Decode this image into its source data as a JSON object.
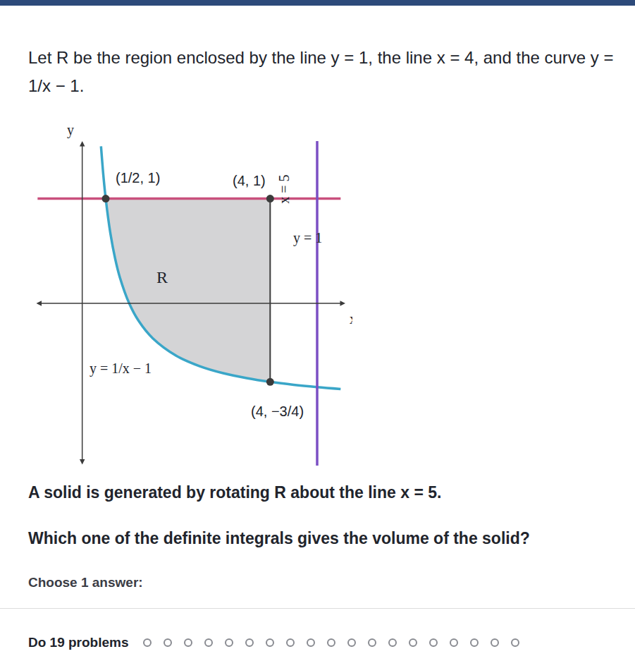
{
  "document": {
    "intro": "Let R be the region enclosed by the line y = 1, the line x = 4, and the curve y = 1/x − 1.",
    "statement": "A solid is generated by rotating R about the line x = 5.",
    "question": "Which one of the definite integrals gives the volume of the solid?",
    "instruction": "Choose 1 answer:",
    "progress": {
      "label": "Do 19 problems",
      "count": 19
    }
  },
  "chart_data": {
    "type": "line",
    "x_label": "x",
    "y_label": "y",
    "tick_labels": false,
    "grid": false,
    "xlim": [
      -1,
      5.6
    ],
    "ylim": [
      -1.55,
      1.55
    ],
    "region_label": "R",
    "series": [
      {
        "name": "R",
        "type": "area",
        "color": "#d4d4d6",
        "x": [
          0.5,
          0.6,
          0.7,
          0.8,
          1,
          1.2,
          1.5,
          2,
          2.5,
          3,
          3.5,
          4,
          4,
          0.5
        ],
        "values": [
          1,
          0.667,
          0.429,
          0.25,
          0,
          -0.167,
          -0.333,
          -0.5,
          -0.6,
          -0.667,
          -0.714,
          -0.75,
          1,
          1
        ]
      },
      {
        "name": "y = 1/x − 1",
        "color": "#3aa6c8",
        "x": [
          0.4,
          0.45,
          0.5,
          0.6,
          0.7,
          0.8,
          1,
          1.2,
          1.5,
          2,
          2.5,
          3,
          3.5,
          4,
          4.5,
          5,
          5.5
        ],
        "values": [
          1.5,
          1.222,
          1,
          0.667,
          0.429,
          0.25,
          0,
          -0.167,
          -0.333,
          -0.5,
          -0.6,
          -0.667,
          -0.714,
          -0.75,
          -0.778,
          -0.8,
          -0.818
        ]
      },
      {
        "name": "y = 1",
        "color": "#c9507d",
        "x": [
          -0.95,
          5.5
        ],
        "values": [
          1,
          1
        ]
      },
      {
        "name": "x = 5",
        "color": "#7b4fc4",
        "x": [
          5,
          5
        ],
        "values": [
          1.55,
          -1.55
        ]
      }
    ],
    "points": [
      {
        "x": 0.5,
        "y": 1,
        "label": "(1/2, 1)"
      },
      {
        "x": 4,
        "y": 1,
        "label": "(4, 1)"
      },
      {
        "x": 4,
        "y": -0.75,
        "label": "(4, −3/4)"
      }
    ]
  }
}
